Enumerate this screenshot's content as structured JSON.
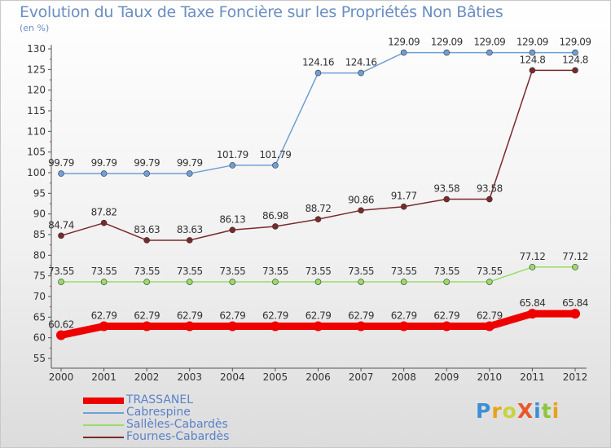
{
  "chart_data": {
    "type": "line",
    "title": "Evolution du Taux de Taxe Foncière sur les Propriétés Non Bâties",
    "subtitle": "(en %)",
    "categories": [
      "2000",
      "2001",
      "2002",
      "2003",
      "2004",
      "2005",
      "2006",
      "2007",
      "2008",
      "2009",
      "2010",
      "2011",
      "2012"
    ],
    "ylim": [
      55,
      130
    ],
    "yticks": [
      55,
      60,
      65,
      70,
      75,
      80,
      85,
      90,
      95,
      100,
      105,
      110,
      115,
      120,
      125,
      130
    ],
    "grid": false,
    "legend_position": "bottom-left",
    "series": [
      {
        "name": "TRASSANEL",
        "color": "#ee0000",
        "values": [
          60.62,
          62.79,
          62.79,
          62.79,
          62.79,
          62.79,
          62.79,
          62.79,
          62.79,
          62.79,
          62.79,
          65.84,
          65.84
        ],
        "labels": [
          "60.62",
          "62.79",
          "62.79",
          "62.79",
          "62.79",
          "62.79",
          "62.79",
          "62.79",
          "62.79",
          "62.79",
          "62.79",
          "65.84",
          "65.84"
        ]
      },
      {
        "name": "Cabrespine",
        "color": "#6f9fd6",
        "values": [
          99.79,
          99.79,
          99.79,
          99.79,
          101.79,
          101.79,
          124.16,
          124.16,
          129.09,
          129.09,
          129.09,
          129.09,
          129.09
        ],
        "labels": [
          "99.79",
          "99.79",
          "99.79",
          "99.79",
          "101.79",
          "101.79",
          "124.16",
          "124.16",
          "129.09",
          "129.09",
          "129.09",
          "129.09",
          "129.09"
        ]
      },
      {
        "name": "Sallèles-Cabardès",
        "color": "#99dd66",
        "values": [
          73.55,
          73.55,
          73.55,
          73.55,
          73.55,
          73.55,
          73.55,
          73.55,
          73.55,
          73.55,
          73.55,
          77.12,
          77.12
        ],
        "labels": [
          "73.55",
          "73.55",
          "73.55",
          "73.55",
          "73.55",
          "73.55",
          "73.55",
          "73.55",
          "73.55",
          "73.55",
          "73.55",
          "77.12",
          "77.12"
        ]
      },
      {
        "name": "Fournes-Cabardès",
        "color": "#7a2a2a",
        "values": [
          84.74,
          87.82,
          83.63,
          83.63,
          86.13,
          86.98,
          88.72,
          90.86,
          91.77,
          93.58,
          93.58,
          124.8,
          124.8
        ],
        "labels": [
          "84.74",
          "87.82",
          "83.63",
          "83.63",
          "86.13",
          "86.98",
          "88.72",
          "90.86",
          "91.77",
          "93.58",
          "93.58",
          "124.8",
          "124.8"
        ]
      }
    ]
  },
  "legend": [
    {
      "label": "TRASSANEL",
      "color": "#ee0000"
    },
    {
      "label": "Cabrespine",
      "color": "#6f9fd6"
    },
    {
      "label": "Sallèles-Cabardès",
      "color": "#99dd66"
    },
    {
      "label": "Fournes-Cabardès",
      "color": "#7a2a2a"
    }
  ],
  "logo": {
    "text": "ProXiti"
  }
}
